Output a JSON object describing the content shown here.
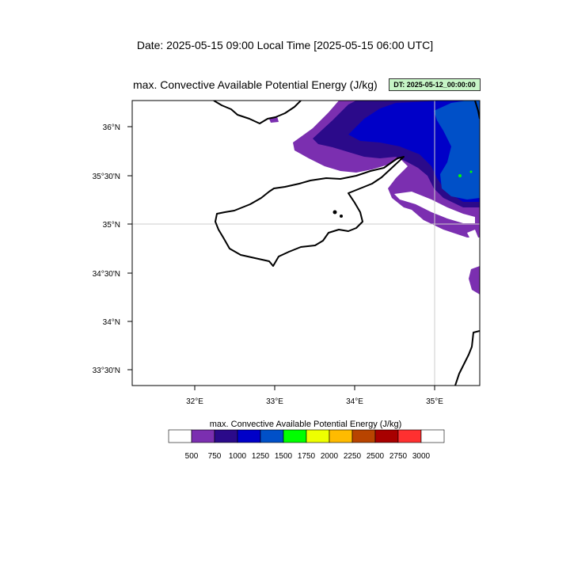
{
  "header": {
    "date_line": "Date: 2025-05-15  09:00 Local Time [2025-05-15  06:00 UTC]",
    "field_title": "max. Convective Available Potential Energy   (J/kg)",
    "dt_badge": "DT: 2025-05-12_00:00:00"
  },
  "map": {
    "lat_labels": [
      "36°N",
      "35°30'N",
      "35°N",
      "34°30'N",
      "34°N",
      "33°30'N"
    ],
    "lon_labels": [
      "32°E",
      "33°E",
      "34°E",
      "35°E"
    ],
    "colors": {
      "land_outline": "#000000",
      "gridline": "#cccccc",
      "cape_500_750": "#7b2fb0",
      "cape_750_1000": "#2b0a8a",
      "cape_1000_1250": "#0000c8",
      "cape_1250_1500": "#0050c8",
      "cape_1500_1750": "#00ff00"
    }
  },
  "colorbar": {
    "title": "max. Convective Available Potential Energy  (J/kg)",
    "ticks": [
      "500",
      "750",
      "1000",
      "1250",
      "1500",
      "1750",
      "2000",
      "2250",
      "2500",
      "2750",
      "3000"
    ],
    "colors": [
      "#ffffff",
      "#7b2fb0",
      "#2b0a8a",
      "#0000c8",
      "#0050c8",
      "#00ff00",
      "#eeff00",
      "#ffbb00",
      "#b84400",
      "#a80000",
      "#ff3030",
      "#ffffff"
    ]
  }
}
